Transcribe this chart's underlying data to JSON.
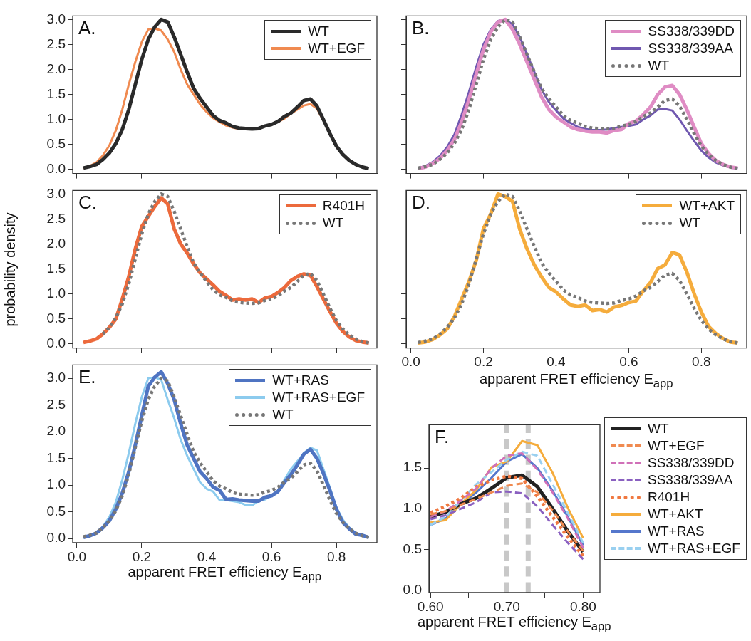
{
  "chart_data": [
    {
      "type": "line",
      "title": "A.",
      "legend": "top right",
      "tick_labels": "y",
      "xlim": [
        -0.013,
        0.925
      ],
      "ylim": [
        -0.08,
        3.07
      ],
      "xticks": [
        {
          "value": 0,
          "label": null
        },
        {
          "value": 0.2,
          "label": null
        },
        {
          "value": 0.4,
          "label": null
        },
        {
          "value": 0.6,
          "label": null
        },
        {
          "value": 0.8,
          "label": null
        }
      ],
      "yticks": [
        {
          "value": 0,
          "label": "0.0"
        },
        {
          "value": 0.5,
          "label": "0.5"
        },
        {
          "value": 1,
          "label": "1.0"
        },
        {
          "value": 1.5,
          "label": "1.5"
        },
        {
          "value": 2,
          "label": "2.0"
        },
        {
          "value": 2.5,
          "label": "2.5"
        },
        {
          "value": 3,
          "label": "3.0"
        }
      ],
      "x": [
        0.02,
        0.04,
        0.06,
        0.08,
        0.1,
        0.12,
        0.14,
        0.16,
        0.18,
        0.2,
        0.22,
        0.24,
        0.26,
        0.28,
        0.3,
        0.32,
        0.34,
        0.36,
        0.38,
        0.4,
        0.42,
        0.44,
        0.46,
        0.48,
        0.5,
        0.52,
        0.54,
        0.56,
        0.58,
        0.6,
        0.62,
        0.64,
        0.66,
        0.68,
        0.7,
        0.72,
        0.74,
        0.76,
        0.78,
        0.8,
        0.82,
        0.84,
        0.86,
        0.88,
        0.9
      ],
      "series": [
        {
          "name": "WT",
          "color": "#2a2a2a",
          "line_style": "solid",
          "values": [
            0.03,
            0.06,
            0.1,
            0.2,
            0.33,
            0.52,
            0.8,
            1.2,
            1.7,
            2.2,
            2.6,
            2.85,
            3.0,
            2.95,
            2.65,
            2.3,
            1.95,
            1.62,
            1.42,
            1.25,
            1.08,
            0.98,
            0.93,
            0.86,
            0.83,
            0.82,
            0.81,
            0.82,
            0.87,
            0.9,
            0.96,
            1.06,
            1.13,
            1.25,
            1.38,
            1.41,
            1.27,
            1.0,
            0.72,
            0.47,
            0.3,
            0.18,
            0.1,
            0.05,
            0.02
          ]
        },
        {
          "name": "WT+EGF",
          "color": "#f08a50",
          "line_style": "solid",
          "values": [
            0.03,
            0.07,
            0.14,
            0.28,
            0.48,
            0.78,
            1.2,
            1.7,
            2.15,
            2.55,
            2.8,
            2.82,
            2.78,
            2.6,
            2.35,
            2.0,
            1.7,
            1.5,
            1.3,
            1.15,
            1.03,
            0.95,
            0.88,
            0.84,
            0.81,
            null,
            0.81,
            0.83,
            null,
            null,
            0.95,
            1.02,
            1.12,
            1.2,
            1.28,
            1.31,
            1.22,
            0.98,
            null,
            null,
            null,
            null,
            null,
            null,
            null
          ]
        }
      ]
    },
    {
      "type": "line",
      "title": "B.",
      "legend": "top right",
      "tick_labels": false,
      "xlim": [
        -0.013,
        0.925
      ],
      "ylim": [
        -0.08,
        3.07
      ],
      "yticks": [
        {
          "value": 0,
          "label": null
        },
        {
          "value": 0.5,
          "label": null
        },
        {
          "value": 1,
          "label": null
        },
        {
          "value": 1.5,
          "label": null
        },
        {
          "value": 2,
          "label": null
        },
        {
          "value": 2.5,
          "label": null
        },
        {
          "value": 3,
          "label": null
        }
      ],
      "xticks": [
        {
          "value": 0,
          "label": null
        },
        {
          "value": 0.2,
          "label": null
        },
        {
          "value": 0.4,
          "label": null
        },
        {
          "value": 0.6,
          "label": null
        },
        {
          "value": 0.8,
          "label": null
        }
      ],
      "x": [
        0.02,
        0.04,
        0.06,
        0.08,
        0.1,
        0.12,
        0.14,
        0.16,
        0.18,
        0.2,
        0.22,
        0.24,
        0.26,
        0.28,
        0.3,
        0.32,
        0.34,
        0.36,
        0.38,
        0.4,
        0.42,
        0.44,
        0.46,
        0.48,
        0.5,
        0.52,
        0.54,
        0.56,
        0.58,
        0.6,
        0.62,
        0.64,
        0.66,
        0.68,
        0.7,
        0.72,
        0.74,
        0.76,
        0.78,
        0.8,
        0.82,
        0.84,
        0.86,
        0.88,
        0.9
      ],
      "series": [
        {
          "name": "SS338/339DD",
          "color": "#df8cc4",
          "line_style": "solid",
          "values": [
            0.02,
            0.05,
            0.12,
            0.22,
            0.38,
            0.6,
            0.95,
            1.4,
            1.9,
            2.4,
            2.75,
            2.95,
            3.0,
            2.8,
            2.5,
            2.15,
            1.8,
            1.45,
            1.2,
            1.05,
            0.95,
            0.85,
            0.8,
            0.77,
            0.75,
            0.75,
            0.73,
            0.78,
            0.8,
            0.92,
            0.97,
            1.1,
            1.25,
            1.5,
            1.65,
            1.68,
            1.5,
            1.2,
            0.85,
            0.52,
            0.32,
            0.18,
            0.1,
            0.05,
            0.03
          ]
        },
        {
          "name": "SS338/339AA",
          "color": "#7058b0",
          "line_style": "solid",
          "values": [
            0.03,
            0.07,
            0.15,
            0.27,
            0.45,
            0.7,
            1.1,
            1.55,
            2.05,
            2.5,
            2.8,
            2.97,
            3.0,
            2.9,
            2.65,
            2.3,
            1.95,
            1.6,
            1.35,
            1.18,
            1.02,
            0.93,
            0.85,
            0.81,
            0.79,
            0.79,
            0.8,
            0.83,
            0.85,
            0.87,
            0.9,
            1.0,
            1.08,
            1.2,
            1.21,
            1.18,
            1.0,
            0.78,
            0.57,
            0.38,
            0.24,
            0.14,
            0.08,
            0.04,
            0.02
          ]
        },
        {
          "name": "WT",
          "color": "#777777",
          "line_style": "dotted",
          "values": [
            0.03,
            0.06,
            0.1,
            0.2,
            0.33,
            0.52,
            0.8,
            1.2,
            1.7,
            2.2,
            2.6,
            2.85,
            3.0,
            2.95,
            2.65,
            2.3,
            1.95,
            1.62,
            1.42,
            1.25,
            1.08,
            0.98,
            0.93,
            0.86,
            0.83,
            0.82,
            0.81,
            0.82,
            0.87,
            0.9,
            0.96,
            1.06,
            1.13,
            1.25,
            1.38,
            1.41,
            1.27,
            1.0,
            0.72,
            0.47,
            0.3,
            0.18,
            0.1,
            0.05,
            0.02
          ]
        }
      ]
    },
    {
      "type": "line",
      "title": "C.",
      "ylabel": "probability density",
      "legend": "top right",
      "tick_labels": "y",
      "xlim": [
        -0.013,
        0.925
      ],
      "ylim": [
        -0.08,
        3.07
      ],
      "xticks": [
        {
          "value": 0,
          "label": null
        },
        {
          "value": 0.2,
          "label": null
        },
        {
          "value": 0.4,
          "label": null
        },
        {
          "value": 0.6,
          "label": null
        },
        {
          "value": 0.8,
          "label": null
        }
      ],
      "yticks": [
        {
          "value": 0,
          "label": "0.0"
        },
        {
          "value": 0.5,
          "label": "0.5"
        },
        {
          "value": 1,
          "label": "1.0"
        },
        {
          "value": 1.5,
          "label": "1.5"
        },
        {
          "value": 2,
          "label": "2.0"
        },
        {
          "value": 2.5,
          "label": "2.5"
        },
        {
          "value": 3,
          "label": "3.0"
        }
      ],
      "x": [
        0.02,
        0.04,
        0.06,
        0.08,
        0.1,
        0.12,
        0.14,
        0.16,
        0.18,
        0.2,
        0.22,
        0.24,
        0.26,
        0.28,
        0.3,
        0.32,
        0.34,
        0.36,
        0.38,
        0.4,
        0.42,
        0.44,
        0.46,
        0.48,
        0.5,
        0.52,
        0.54,
        0.56,
        0.58,
        0.6,
        0.62,
        0.64,
        0.66,
        0.68,
        0.7,
        0.72,
        0.74,
        0.76,
        0.78,
        0.8,
        0.82,
        0.84,
        0.86,
        0.88,
        0.9
      ],
      "series": [
        {
          "name": "R401H",
          "color": "#ec6a3c",
          "line_style": "solid",
          "values": [
            0.03,
            0.06,
            0.1,
            0.2,
            0.33,
            0.5,
            0.9,
            1.35,
            1.9,
            2.35,
            2.55,
            2.75,
            2.92,
            2.8,
            2.3,
            2.0,
            1.82,
            1.6,
            1.42,
            1.3,
            1.18,
            1.05,
            0.97,
            0.88,
            0.9,
            0.88,
            0.9,
            0.83,
            0.92,
            0.95,
            1.03,
            1.13,
            1.27,
            1.35,
            1.4,
            1.37,
            1.15,
            0.9,
            0.65,
            0.42,
            0.25,
            0.14,
            0.07,
            0.04,
            0.02
          ]
        },
        {
          "name": "WT",
          "color": "#777777",
          "line_style": "dotted",
          "values": [
            null,
            null,
            null,
            0.2,
            0.33,
            0.52,
            0.8,
            1.2,
            1.7,
            2.2,
            2.6,
            2.85,
            3.0,
            2.95,
            2.65,
            2.3,
            1.95,
            1.62,
            1.42,
            1.25,
            1.08,
            0.98,
            0.93,
            0.86,
            0.83,
            0.82,
            0.81,
            0.82,
            0.87,
            0.9,
            0.96,
            1.06,
            1.13,
            1.25,
            1.38,
            1.41,
            1.27,
            1.0,
            0.72,
            0.47,
            0.3,
            0.18,
            0.1,
            0.05,
            0.02
          ]
        }
      ]
    },
    {
      "type": "line",
      "title": "D.",
      "xlabel": "apparent FRET efficiency  E$_{app}$",
      "legend": "top right",
      "tick_labels": "x",
      "xlim": [
        -0.013,
        0.925
      ],
      "ylim": [
        -0.08,
        3.07
      ],
      "yticks": [
        {
          "value": 0,
          "label": null
        },
        {
          "value": 0.5,
          "label": null
        },
        {
          "value": 1,
          "label": null
        },
        {
          "value": 1.5,
          "label": null
        },
        {
          "value": 2,
          "label": null
        },
        {
          "value": 2.5,
          "label": null
        },
        {
          "value": 3,
          "label": null
        }
      ],
      "xticks": [
        {
          "value": 0,
          "label": "0.0"
        },
        {
          "value": 0.2,
          "label": "0.2"
        },
        {
          "value": 0.4,
          "label": "0.4"
        },
        {
          "value": 0.6,
          "label": "0.6"
        },
        {
          "value": 0.8,
          "label": "0.8"
        }
      ],
      "x": [
        0.02,
        0.04,
        0.06,
        0.08,
        0.1,
        0.12,
        0.14,
        0.16,
        0.18,
        0.2,
        0.22,
        0.24,
        0.26,
        0.28,
        0.3,
        0.32,
        0.34,
        0.36,
        0.38,
        0.4,
        0.42,
        0.44,
        0.46,
        0.48,
        0.5,
        0.52,
        0.54,
        0.56,
        0.58,
        0.6,
        0.62,
        0.64,
        0.66,
        0.68,
        0.7,
        0.72,
        0.74,
        0.76,
        0.78,
        0.8,
        0.82,
        0.84,
        0.86,
        0.88,
        0.9
      ],
      "series": [
        {
          "name": "WT+AKT",
          "color": "#f5ac3c",
          "line_style": "solid",
          "values": [
            0.02,
            0.04,
            0.09,
            0.18,
            0.3,
            0.55,
            0.9,
            1.25,
            1.67,
            2.31,
            2.6,
            3.0,
            2.95,
            2.85,
            2.29,
            1.9,
            1.58,
            1.34,
            1.13,
            1.04,
            0.9,
            0.78,
            0.75,
            0.78,
            0.67,
            0.69,
            0.64,
            0.74,
            0.77,
            0.83,
            0.86,
            1.06,
            1.23,
            1.51,
            1.58,
            1.83,
            1.78,
            1.44,
            1.01,
            0.64,
            0.35,
            0.21,
            0.11,
            0.04,
            0.02
          ]
        },
        {
          "name": "WT",
          "color": "#777777",
          "line_style": "dotted",
          "values": [
            0.03,
            0.06,
            0.1,
            0.2,
            0.33,
            0.52,
            0.8,
            1.2,
            1.7,
            2.2,
            2.6,
            2.85,
            3.0,
            2.95,
            2.65,
            2.3,
            1.95,
            1.62,
            1.42,
            1.25,
            1.08,
            0.98,
            0.93,
            0.86,
            0.83,
            0.82,
            0.81,
            0.82,
            0.87,
            0.9,
            0.96,
            1.06,
            1.13,
            1.25,
            1.38,
            1.41,
            1.27,
            1.0,
            0.72,
            0.47,
            0.3,
            0.18,
            0.1,
            0.05,
            0.02
          ]
        }
      ]
    },
    {
      "type": "line",
      "title": "E.",
      "xlabel": "apparent FRET efficiency  E$_{app}$",
      "legend": "top right",
      "xlim": [
        -0.013,
        0.925
      ],
      "ylim": [
        -0.08,
        3.25
      ],
      "xticks": [
        {
          "value": 0,
          "label": "0.0"
        },
        {
          "value": 0.2,
          "label": "0.2"
        },
        {
          "value": 0.4,
          "label": "0.4"
        },
        {
          "value": 0.6,
          "label": "0.6"
        },
        {
          "value": 0.8,
          "label": "0.8"
        }
      ],
      "yticks": [
        {
          "value": 0,
          "label": "0.0"
        },
        {
          "value": 0.5,
          "label": "0.5"
        },
        {
          "value": 1,
          "label": "1.0"
        },
        {
          "value": 1.5,
          "label": "1.5"
        },
        {
          "value": 2,
          "label": "2.0"
        },
        {
          "value": 2.5,
          "label": "2.5"
        },
        {
          "value": 3,
          "label": "3.0"
        }
      ],
      "x": [
        0.02,
        0.04,
        0.06,
        0.08,
        0.1,
        0.12,
        0.14,
        0.16,
        0.18,
        0.2,
        0.22,
        0.24,
        0.26,
        0.28,
        0.3,
        0.32,
        0.34,
        0.36,
        0.38,
        0.4,
        0.42,
        0.44,
        0.46,
        0.48,
        0.5,
        0.52,
        0.54,
        0.56,
        0.58,
        0.6,
        0.62,
        0.64,
        0.66,
        0.68,
        0.7,
        0.72,
        0.74,
        0.76,
        0.78,
        0.8,
        0.82,
        0.84,
        0.86,
        0.88,
        0.9
      ],
      "series": [
        {
          "name": "WT+RAS",
          "color": "#4f74c2",
          "line_style": "solid",
          "values": [
            0.02,
            0.05,
            0.1,
            0.2,
            0.33,
            0.55,
            0.85,
            1.25,
            1.75,
            2.3,
            2.85,
            3.02,
            3.12,
            2.9,
            2.6,
            2.15,
            1.75,
            1.5,
            1.25,
            1.12,
            0.96,
            0.9,
            0.73,
            0.74,
            0.72,
            0.71,
            0.7,
            0.7,
            0.77,
            0.8,
            0.88,
            1.05,
            1.2,
            1.38,
            1.58,
            1.67,
            1.5,
            1.22,
            0.9,
            0.55,
            0.3,
            0.18,
            0.08,
            0.06,
            0.02
          ]
        },
        {
          "name": "WT+RAS+EGF",
          "color": "#8ccbee",
          "line_style": "solid",
          "values": [
            0.02,
            0.05,
            0.1,
            0.22,
            0.4,
            0.68,
            1.1,
            1.6,
            2.15,
            2.65,
            3.0,
            3.02,
            2.97,
            2.6,
            2.25,
            1.85,
            1.55,
            1.3,
            1.05,
            0.93,
            0.88,
            0.72,
            0.72,
            0.7,
            0.68,
            0.63,
            0.62,
            0.7,
            0.73,
            0.8,
            0.9,
            1.1,
            1.3,
            1.45,
            1.6,
            1.7,
            1.65,
            1.3,
            0.95,
            0.58,
            0.35,
            0.2,
            0.1,
            0.05,
            0.02
          ]
        },
        {
          "name": "WT",
          "color": "#777777",
          "line_style": "dotted",
          "values": [
            0.03,
            0.06,
            0.1,
            0.2,
            0.33,
            0.52,
            0.8,
            1.2,
            1.7,
            2.2,
            2.6,
            2.85,
            3.0,
            2.95,
            2.65,
            2.3,
            1.95,
            1.62,
            1.42,
            1.25,
            1.08,
            0.98,
            0.93,
            0.86,
            0.83,
            0.82,
            0.81,
            0.82,
            0.87,
            0.9,
            0.96,
            1.06,
            1.13,
            1.25,
            1.38,
            1.41,
            1.27,
            1.0,
            0.72,
            0.47,
            0.3,
            0.18,
            0.1,
            0.05,
            0.02
          ]
        }
      ]
    },
    {
      "type": "line",
      "title": "F.",
      "xlabel": "apparent FRET efficiency  E$_{app}$",
      "legend": "right",
      "xlim": [
        0.598,
        0.822
      ],
      "ylim": [
        -0.03,
        2.03
      ],
      "xticks": [
        {
          "value": 0.6,
          "label": "0.60"
        },
        {
          "value": 0.65,
          "label": null
        },
        {
          "value": 0.7,
          "label": "0.70"
        },
        {
          "value": 0.75,
          "label": null
        },
        {
          "value": 0.8,
          "label": "0.80"
        }
      ],
      "yticks": [
        {
          "value": 0,
          "label": "0.0"
        },
        {
          "value": 0.5,
          "label": "0.5"
        },
        {
          "value": 1,
          "label": "1.0"
        },
        {
          "value": 1.5,
          "label": "1.5"
        }
      ],
      "ref_lines": [
        {
          "axis": "x",
          "value": 0.7,
          "color": "#c8c8c8",
          "line_style": "dashed"
        },
        {
          "axis": "x",
          "value": 0.728,
          "color": "#c8c8c8",
          "line_style": "dashed"
        }
      ],
      "x": [
        0.6,
        0.62,
        0.64,
        0.66,
        0.68,
        0.7,
        0.72,
        0.74,
        0.76,
        0.78,
        0.8
      ],
      "series": [
        {
          "name": "WT",
          "color": "#222222",
          "line_style": "solid",
          "values": [
            0.9,
            0.96,
            1.06,
            1.13,
            1.25,
            1.38,
            1.41,
            1.27,
            1.0,
            0.72,
            0.47
          ]
        },
        {
          "name": "WT+EGF",
          "color": "#f08a50",
          "line_style": "dashed",
          "values": [
            0.93,
            0.97,
            1.05,
            1.12,
            1.2,
            1.28,
            1.31,
            1.2,
            0.98,
            0.72,
            0.48
          ]
        },
        {
          "name": "SS338/339DD",
          "color": "#d070b8",
          "line_style": "dashed",
          "values": [
            0.9,
            0.97,
            1.1,
            1.25,
            1.5,
            1.65,
            1.68,
            1.48,
            1.2,
            0.88,
            0.52
          ]
        },
        {
          "name": "SS338/339AA",
          "color": "#8a60c0",
          "line_style": "dashed",
          "values": [
            0.87,
            0.92,
            1.0,
            1.08,
            1.2,
            1.21,
            1.19,
            1.03,
            0.8,
            0.58,
            0.38
          ]
        },
        {
          "name": "R401H",
          "color": "#f07840",
          "line_style": "dotted",
          "values": [
            0.95,
            1.03,
            1.13,
            1.27,
            1.35,
            1.4,
            1.37,
            1.15,
            0.9,
            0.65,
            0.42
          ]
        },
        {
          "name": "WT+AKT",
          "color": "#f5ac3c",
          "line_style": "solid",
          "values": [
            0.83,
            0.86,
            1.06,
            1.23,
            1.51,
            1.58,
            1.83,
            1.78,
            1.44,
            1.01,
            0.64
          ]
        },
        {
          "name": "WT+RAS",
          "color": "#5577cc",
          "line_style": "solid",
          "values": [
            0.8,
            0.88,
            1.05,
            1.2,
            1.38,
            1.58,
            1.67,
            1.5,
            1.22,
            0.9,
            0.55
          ]
        },
        {
          "name": "WT+RAS+EGF",
          "color": "#99d0f0",
          "line_style": "dashed",
          "values": [
            0.8,
            0.9,
            1.1,
            1.3,
            1.45,
            1.6,
            1.7,
            1.65,
            1.3,
            0.95,
            0.58
          ]
        }
      ]
    }
  ]
}
